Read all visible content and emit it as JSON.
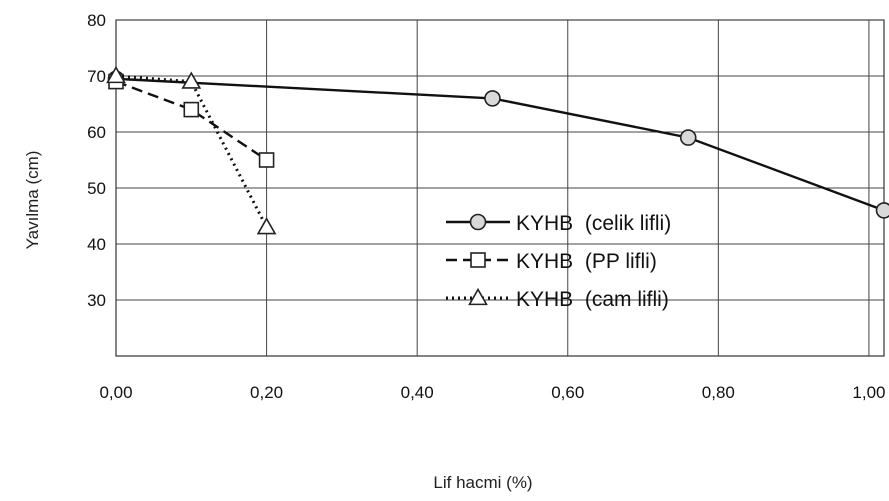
{
  "chart_data": {
    "type": "line",
    "xlabel": "Lif hacmi (%)",
    "ylabel": "Yavılma (cm)",
    "xlim": [
      0,
      1.02
    ],
    "ylim": [
      20,
      80
    ],
    "x_ticks": [
      "0,00",
      "0,20",
      "0,40",
      "0,60",
      "0,80",
      "1,00"
    ],
    "y_ticks": [
      "30",
      "40",
      "50",
      "60",
      "70",
      "80"
    ],
    "grid": true,
    "legend_position": "lower-right",
    "series": [
      {
        "name": "KYHB  (celik lifli)",
        "line_style": "solid",
        "marker": "circle",
        "points": [
          {
            "x": 0.0,
            "y": 69.5
          },
          {
            "x": 0.5,
            "y": 66
          },
          {
            "x": 0.76,
            "y": 59
          },
          {
            "x": 1.02,
            "y": 46
          }
        ]
      },
      {
        "name": "KYHB  (PP lifli)",
        "line_style": "dashed",
        "marker": "square",
        "points": [
          {
            "x": 0.0,
            "y": 69
          },
          {
            "x": 0.1,
            "y": 64
          },
          {
            "x": 0.2,
            "y": 55
          }
        ]
      },
      {
        "name": "KYHB  (cam lifli)",
        "line_style": "dotted",
        "marker": "triangle",
        "points": [
          {
            "x": 0.0,
            "y": 70
          },
          {
            "x": 0.1,
            "y": 69
          },
          {
            "x": 0.2,
            "y": 43
          }
        ]
      }
    ]
  }
}
